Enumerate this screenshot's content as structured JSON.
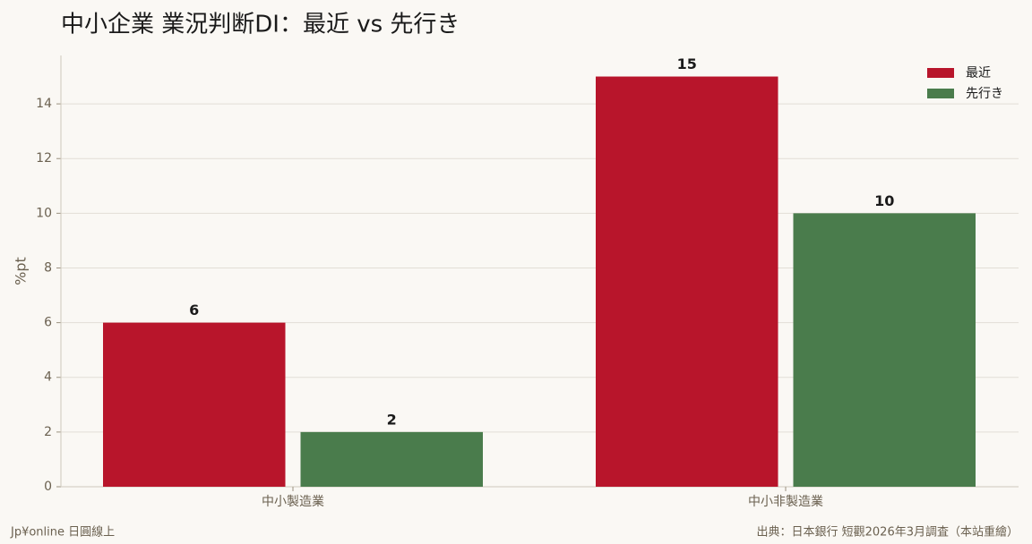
{
  "chart_data": {
    "type": "bar",
    "title": "中小企業 業況判断DI：最近 vs 先行き",
    "y_label": "%pt",
    "categories": [
      "中小製造業",
      "中小非製造業"
    ],
    "series": [
      {
        "name": "最近",
        "color": "#b8152b",
        "values": [
          6,
          15
        ]
      },
      {
        "name": "先行き",
        "color": "#4a7c4c",
        "values": [
          2,
          10
        ]
      }
    ],
    "ylim": [
      0,
      15.77
    ],
    "yticks": [
      0,
      2,
      4,
      6,
      8,
      10,
      12,
      14
    ],
    "grid": true,
    "legend": "upper-right",
    "brand": "Jp¥online 日圓線上",
    "source": "出典：日本銀行 短觀2026年3月調査（本站重繪）"
  }
}
